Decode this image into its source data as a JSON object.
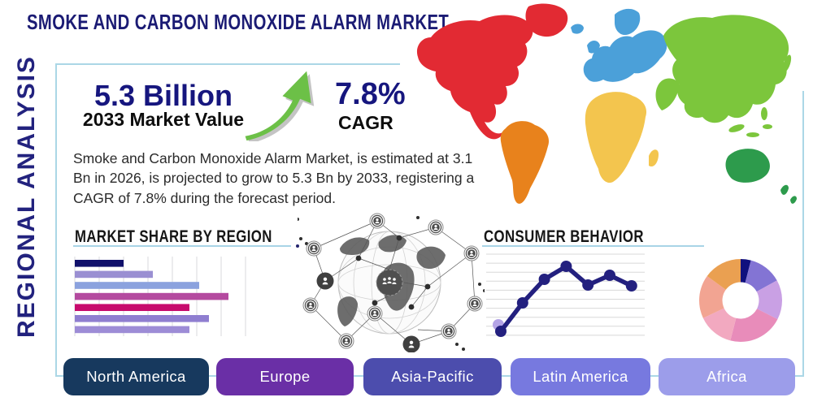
{
  "header": {
    "title": "SMOKE AND CARBON MONOXIDE ALARM MARKET"
  },
  "sidebar": {
    "vertical_label": "REGIONAL ANALYSIS"
  },
  "stats": {
    "market_value": "5.3 Billion",
    "market_value_caption": "2033 Market Value",
    "cagr_value": "7.8%",
    "cagr_caption": "CAGR",
    "growth_arrow_icon": "growth-arrow-icon",
    "growth_arrow_color": "#6cc047"
  },
  "description": "Smoke and Carbon Monoxide Alarm Market, is estimated at 3.1 Bn in 2026, is projected to grow to 5.3 Bn by 2033, registering a CAGR of 7.8% during the forecast period.",
  "sections": {
    "market_share_heading": "MARKET SHARE BY REGION",
    "consumer_behavior_heading": "CONSUMER BEHAVIOR"
  },
  "map": {
    "regions": [
      {
        "name": "North America",
        "color": "#e22a33"
      },
      {
        "name": "South America",
        "color": "#e8821c"
      },
      {
        "name": "Europe",
        "color": "#4ba0d9"
      },
      {
        "name": "Africa",
        "color": "#f3c54e"
      },
      {
        "name": "Asia",
        "color": "#7cc63c"
      },
      {
        "name": "Oceania",
        "color": "#2d9b4c"
      }
    ]
  },
  "footer": {
    "regions": [
      {
        "label": "North America",
        "color": "#17395e"
      },
      {
        "label": "Europe",
        "color": "#6a2fa6"
      },
      {
        "label": "Asia-Pacific",
        "color": "#4c4dad"
      },
      {
        "label": "Latin America",
        "color": "#7779df"
      },
      {
        "label": "Africa",
        "color": "#9c9dea"
      }
    ]
  },
  "chart_data": [
    {
      "type": "bar",
      "title": "MARKET SHARE BY REGION",
      "orientation": "horizontal",
      "values": [
        20,
        32,
        51,
        63,
        47,
        55,
        47
      ],
      "xlim": [
        0,
        70
      ],
      "grid": true,
      "bar_colors": [
        "#10106b",
        "#9a8fd2",
        "#8ba2de",
        "#b44a9f",
        "#c70a6d",
        "#8f7ed0",
        "#9d8cd6"
      ]
    },
    {
      "type": "line",
      "title": "CONSUMER BEHAVIOR",
      "x": [
        1,
        2,
        3,
        4,
        5,
        6,
        7
      ],
      "y": [
        0.5,
        4.0,
        6.9,
        8.5,
        6.2,
        7.4,
        6.1
      ],
      "ylim": [
        0,
        10
      ],
      "grid": true,
      "line_color": "#23207f",
      "highlight_dot_color": "#b4a4e6"
    },
    {
      "type": "pie",
      "donut": true,
      "unit": "percent",
      "slices": [
        {
          "value": 4,
          "color": "#10107e"
        },
        {
          "value": 13,
          "color": "#8374d4"
        },
        {
          "value": 15.5,
          "color": "#c9a0e4"
        },
        {
          "value": 21.5,
          "color": "#e88cba"
        },
        {
          "value": 14,
          "color": "#f2a9c0"
        },
        {
          "value": 17,
          "color": "#f2a492"
        },
        {
          "value": 15,
          "color": "#eaa051"
        }
      ]
    }
  ]
}
